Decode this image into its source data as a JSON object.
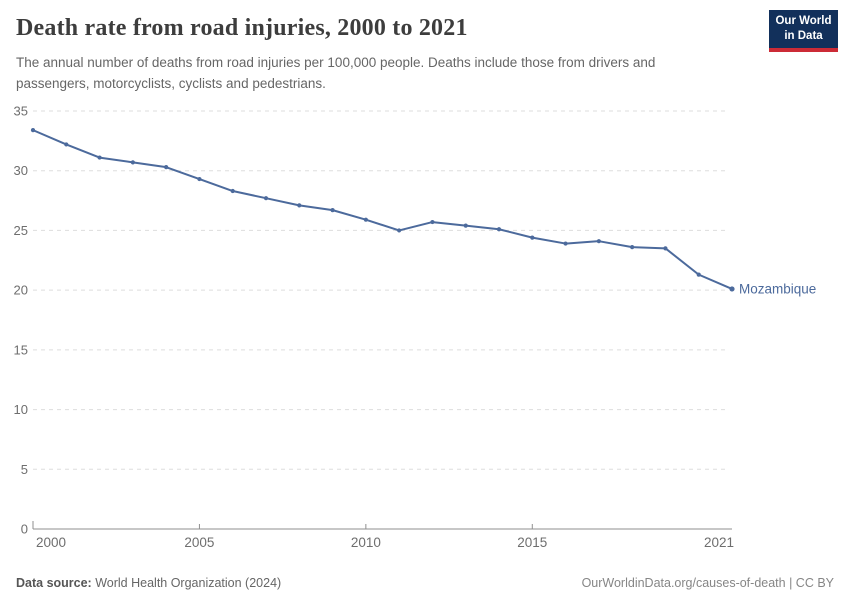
{
  "header": {
    "title": "Death rate from road injuries, 2000 to 2021",
    "subtitle": "The annual number of deaths from road injuries per 100,000 people. Deaths include those from drivers and passengers, motorcyclists, cyclists and pedestrians.",
    "logo": {
      "line1": "Our World",
      "line2": "in Data",
      "bg_color": "#12305b",
      "stripe_color": "#cc2b36"
    }
  },
  "chart_data": {
    "type": "line",
    "title": "Death rate from road injuries, 2000 to 2021",
    "xlabel": "",
    "ylabel": "",
    "x": [
      2000,
      2001,
      2002,
      2003,
      2004,
      2005,
      2006,
      2007,
      2008,
      2009,
      2010,
      2011,
      2012,
      2013,
      2014,
      2015,
      2016,
      2017,
      2018,
      2019,
      2020,
      2021
    ],
    "series": [
      {
        "name": "Mozambique",
        "color": "#4c6a9c",
        "values": [
          33.4,
          32.2,
          31.1,
          30.7,
          30.3,
          29.3,
          28.3,
          27.7,
          27.1,
          26.7,
          25.9,
          25.0,
          25.7,
          25.4,
          25.1,
          24.4,
          23.9,
          24.1,
          23.6,
          23.5,
          21.3,
          20.1
        ]
      }
    ],
    "xlim": [
      2000,
      2021
    ],
    "ylim": [
      0,
      35
    ],
    "yticks": [
      0,
      5,
      10,
      15,
      20,
      25,
      30,
      35
    ],
    "xticks": [
      2000,
      2005,
      2010,
      2015,
      2021
    ],
    "grid": "horizontal-dashed",
    "legend_position": "end-of-line",
    "colors": {
      "grid": "#dddddd",
      "axis": "#8f8f8f",
      "tick_text": "#6e6e6e"
    }
  },
  "footer": {
    "data_source_label": "Data source:",
    "data_source_value": "World Health Organization (2024)",
    "credit": "OurWorldinData.org/causes-of-death | CC BY"
  }
}
